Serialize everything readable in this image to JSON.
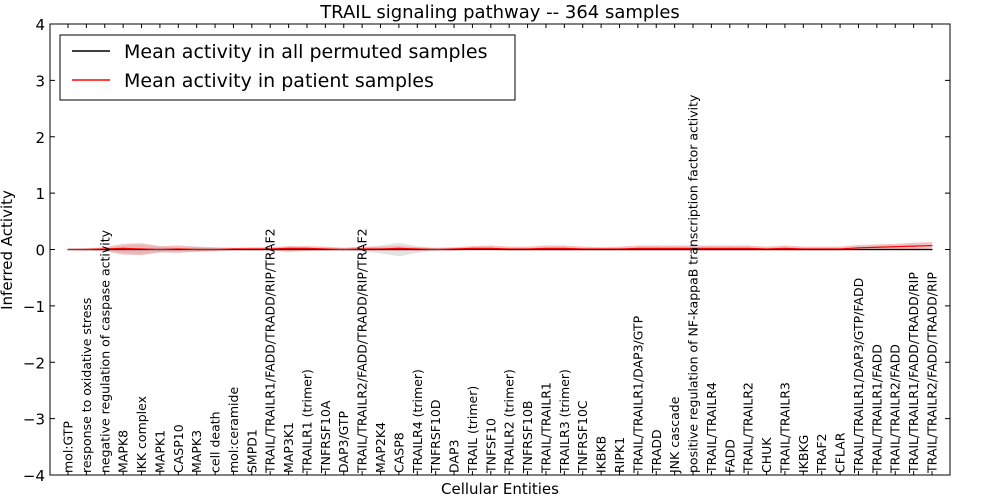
{
  "chart_data": {
    "type": "line",
    "title": "TRAIL signaling pathway -- 364 samples",
    "xlabel": "Cellular Entities",
    "ylabel": "Inferred Activity",
    "ylim": [
      -4,
      4
    ],
    "yticks": [
      -4,
      -3,
      -2,
      -1,
      0,
      1,
      2,
      3,
      4
    ],
    "ytick_labels": [
      "−4",
      "−3",
      "−2",
      "−1",
      "0",
      "1",
      "2",
      "3",
      "4"
    ],
    "legend_position": "top-left",
    "categories": [
      "mol:GTP",
      "response to oxidative stress",
      "negative regulation of caspase activity",
      "MAPK8",
      "IKK complex",
      "MAPK1",
      "CASP10",
      "MAPK3",
      "cell death",
      "mol:ceramide",
      "SMPD1",
      "TRAIL/TRAILR1/FADD/TRADD/RIP/TRAF2",
      "MAP3K1",
      "TRAILR1 (trimer)",
      "TNFRSF10A",
      "DAP3/GTP",
      "TRAIL/TRAILR2/FADD/TRADD/RIP/TRAF2",
      "MAP2K4",
      "CASP8",
      "TRAILR4 (trimer)",
      "TNFRSF10D",
      "DAP3",
      "TRAIL (trimer)",
      "TNFSF10",
      "TRAILR2 (trimer)",
      "TNFRSF10B",
      "TRAIL/TRAILR1",
      "TRAILR3 (trimer)",
      "TNFRSF10C",
      "IKBKB",
      "RIPK1",
      "TRAIL/TRAILR1/DAP3/GTP",
      "TRADD",
      "JNK cascade",
      "positive regulation of NF-kappaB transcription factor activity",
      "TRAIL/TRAILR4",
      "FADD",
      "TRAIL/TRAILR2",
      "CHUK",
      "TRAIL/TRAILR3",
      "IKBKG",
      "TRAF2",
      "CFLAR",
      "TRAIL/TRAILR1/DAP3/GTP/FADD",
      "TRAIL/TRAILR1/FADD",
      "TRAIL/TRAILR2/FADD",
      "TRAIL/TRAILR1/FADD/TRADD/RIP",
      "TRAIL/TRAILR2/FADD/TRADD/RIP"
    ],
    "series": [
      {
        "name": "Mean activity in all permuted samples",
        "color": "#000000",
        "values": [
          0,
          0,
          0,
          0,
          0,
          0,
          0,
          0,
          0,
          0,
          0,
          0,
          0,
          0,
          0,
          0,
          0,
          0,
          0,
          0,
          0,
          0,
          0,
          0,
          0,
          0,
          0,
          0,
          0,
          0,
          0,
          0,
          0,
          0,
          0,
          0,
          0,
          0,
          0,
          0,
          0,
          0,
          0,
          0,
          0,
          0,
          0,
          0
        ],
        "band_lower": [
          0,
          -0.01,
          -0.01,
          -0.06,
          -0.08,
          -0.05,
          -0.03,
          -0.04,
          -0.02,
          -0.01,
          -0.01,
          -0.02,
          -0.05,
          -0.03,
          -0.02,
          -0.01,
          -0.03,
          -0.07,
          -0.12,
          -0.06,
          -0.02,
          -0.01,
          -0.01,
          -0.01,
          -0.02,
          -0.01,
          -0.01,
          -0.02,
          -0.01,
          -0.01,
          -0.01,
          -0.01,
          -0.01,
          -0.01,
          -0.01,
          -0.01,
          -0.01,
          -0.01,
          -0.01,
          -0.01,
          -0.01,
          -0.01,
          -0.01,
          -0.02,
          -0.02,
          -0.02,
          -0.02,
          -0.02
        ],
        "band_upper": [
          0,
          0.01,
          0.01,
          0.06,
          0.08,
          0.05,
          0.03,
          0.04,
          0.02,
          0.01,
          0.01,
          0.02,
          0.05,
          0.03,
          0.02,
          0.01,
          0.03,
          0.07,
          0.12,
          0.06,
          0.02,
          0.01,
          0.01,
          0.01,
          0.02,
          0.01,
          0.01,
          0.02,
          0.01,
          0.01,
          0.01,
          0.01,
          0.01,
          0.01,
          0.01,
          0.01,
          0.01,
          0.01,
          0.01,
          0.01,
          0.01,
          0.01,
          0.01,
          0.02,
          0.02,
          0.02,
          0.02,
          0.02
        ],
        "band_color": "#cccccc"
      },
      {
        "name": "Mean activity in patient samples",
        "color": "#ff0000",
        "values": [
          0,
          0,
          0.01,
          0.02,
          0.01,
          0,
          0.01,
          0,
          0,
          0.01,
          0.01,
          0.01,
          0.02,
          0.02,
          0.01,
          0,
          0.01,
          0.01,
          0.02,
          0.01,
          0,
          0.01,
          0.02,
          0.02,
          0.01,
          0.01,
          0.02,
          0.02,
          0.01,
          0.01,
          0.01,
          0.02,
          0.02,
          0.02,
          0.02,
          0.02,
          0.02,
          0.02,
          0.01,
          0.02,
          0.01,
          0.01,
          0.01,
          0.03,
          0.04,
          0.05,
          0.06,
          0.07
        ],
        "band_lower": [
          -0.01,
          -0.02,
          -0.03,
          -0.09,
          -0.1,
          -0.05,
          -0.06,
          -0.04,
          -0.03,
          -0.02,
          -0.02,
          -0.02,
          -0.03,
          -0.02,
          -0.02,
          -0.02,
          -0.02,
          -0.02,
          -0.02,
          -0.02,
          -0.02,
          -0.02,
          -0.01,
          -0.01,
          -0.02,
          -0.02,
          -0.02,
          -0.02,
          -0.02,
          -0.02,
          -0.02,
          -0.02,
          -0.02,
          -0.02,
          -0.02,
          -0.02,
          -0.02,
          -0.02,
          -0.02,
          -0.02,
          -0.02,
          -0.02,
          -0.02,
          -0.01,
          -0.01,
          0,
          0.01,
          0.02
        ],
        "band_upper": [
          0.01,
          0.02,
          0.04,
          0.1,
          0.11,
          0.06,
          0.07,
          0.05,
          0.04,
          0.03,
          0.04,
          0.04,
          0.06,
          0.06,
          0.05,
          0.03,
          0.05,
          0.05,
          0.06,
          0.04,
          0.03,
          0.04,
          0.06,
          0.07,
          0.05,
          0.05,
          0.07,
          0.07,
          0.05,
          0.04,
          0.05,
          0.07,
          0.07,
          0.07,
          0.07,
          0.07,
          0.07,
          0.07,
          0.05,
          0.07,
          0.05,
          0.05,
          0.05,
          0.08,
          0.09,
          0.1,
          0.12,
          0.13
        ],
        "band_color": "#e89a9a"
      }
    ]
  }
}
